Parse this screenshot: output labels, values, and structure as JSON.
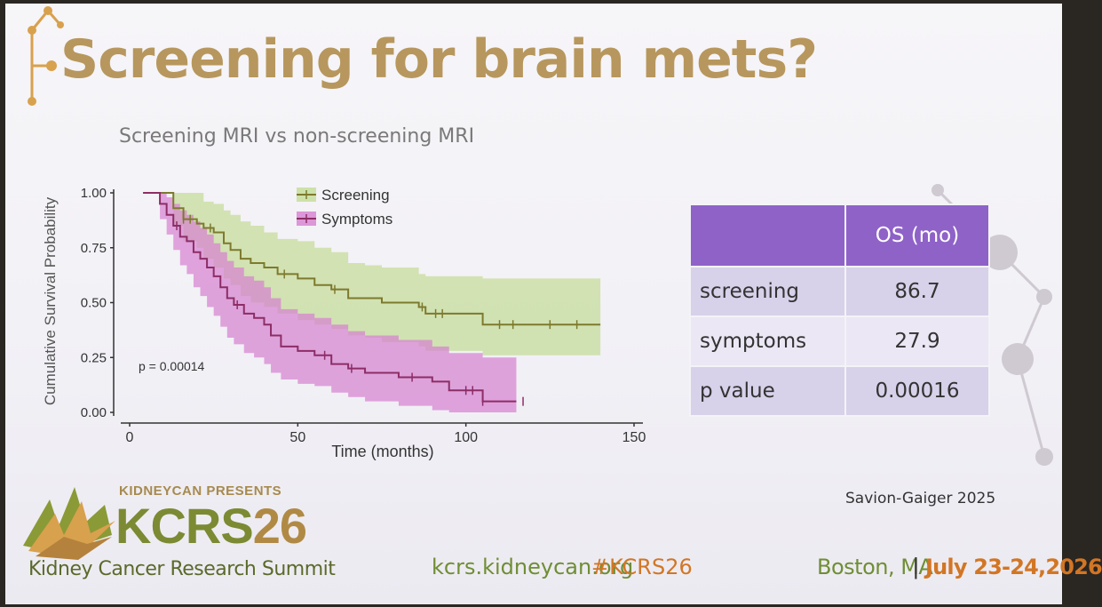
{
  "slide": {
    "title": "Screening for brain mets?",
    "subtitle": "Screening MRI vs non-screening MRI",
    "citation": "Savion-Gaiger 2025"
  },
  "chart_data": {
    "type": "line",
    "subtype": "kaplan-meier",
    "title": "",
    "xlabel": "Time (months)",
    "ylabel": "Cumulative Survival Probability",
    "xlim": [
      0,
      150
    ],
    "ylim": [
      0,
      1
    ],
    "x_ticks": [
      "0",
      "50",
      "100",
      "150"
    ],
    "y_ticks": [
      "0.00",
      "0.25",
      "0.50",
      "0.75",
      "1.00"
    ],
    "legend_position": "top-center",
    "annotation": "p = 0.00014",
    "series": [
      {
        "name": "Screening",
        "color": "#7d7a2d",
        "band_color": "#c3dc96",
        "x": [
          4,
          10,
          13,
          16,
          20,
          22,
          25,
          28,
          30,
          33,
          36,
          40,
          44,
          50,
          55,
          60,
          63,
          65,
          70,
          75,
          80,
          86,
          88,
          100,
          105,
          110,
          130,
          140
        ],
        "y": [
          1.0,
          1.0,
          0.93,
          0.88,
          0.86,
          0.84,
          0.82,
          0.77,
          0.74,
          0.7,
          0.68,
          0.66,
          0.63,
          0.61,
          0.58,
          0.56,
          0.56,
          0.52,
          0.52,
          0.5,
          0.5,
          0.48,
          0.45,
          0.45,
          0.4,
          0.4,
          0.4,
          0.4
        ],
        "ci_upper": [
          1.0,
          1.0,
          1.0,
          1.0,
          1.0,
          0.96,
          0.95,
          0.92,
          0.9,
          0.87,
          0.85,
          0.82,
          0.79,
          0.78,
          0.75,
          0.73,
          0.73,
          0.68,
          0.67,
          0.66,
          0.66,
          0.63,
          0.62,
          0.62,
          0.61,
          0.61,
          0.61,
          0.61
        ],
        "ci_lower": [
          1.0,
          1.0,
          0.85,
          0.78,
          0.75,
          0.7,
          0.66,
          0.61,
          0.58,
          0.53,
          0.5,
          0.48,
          0.45,
          0.42,
          0.4,
          0.38,
          0.38,
          0.35,
          0.34,
          0.32,
          0.32,
          0.3,
          0.28,
          0.28,
          0.26,
          0.26,
          0.26,
          0.26
        ],
        "censor_x": [
          16,
          18,
          24,
          46,
          61,
          87,
          91,
          93,
          110,
          114,
          125,
          133
        ]
      },
      {
        "name": "Symptoms",
        "color": "#8d2d66",
        "band_color": "#d680d0",
        "x": [
          4,
          7,
          9,
          11,
          13,
          15,
          17,
          19,
          21,
          23,
          25,
          27,
          29,
          31,
          34,
          37,
          40,
          42,
          45,
          50,
          55,
          60,
          65,
          70,
          80,
          90,
          95,
          105,
          115
        ],
        "y": [
          1.0,
          1.0,
          0.95,
          0.9,
          0.85,
          0.8,
          0.78,
          0.73,
          0.7,
          0.66,
          0.62,
          0.57,
          0.52,
          0.49,
          0.45,
          0.43,
          0.4,
          0.35,
          0.3,
          0.28,
          0.26,
          0.22,
          0.2,
          0.18,
          0.16,
          0.14,
          0.1,
          0.05,
          0.05
        ],
        "ci_upper": [
          1.0,
          1.0,
          1.0,
          0.98,
          0.95,
          0.92,
          0.9,
          0.87,
          0.84,
          0.81,
          0.77,
          0.73,
          0.69,
          0.66,
          0.62,
          0.6,
          0.57,
          0.52,
          0.47,
          0.45,
          0.43,
          0.4,
          0.37,
          0.35,
          0.33,
          0.3,
          0.27,
          0.25,
          0.25
        ],
        "ci_lower": [
          1.0,
          1.0,
          0.88,
          0.81,
          0.74,
          0.67,
          0.63,
          0.57,
          0.53,
          0.48,
          0.44,
          0.39,
          0.34,
          0.31,
          0.27,
          0.25,
          0.22,
          0.18,
          0.15,
          0.13,
          0.12,
          0.09,
          0.07,
          0.05,
          0.03,
          0.01,
          0.0,
          0.0,
          0.0
        ],
        "censor_x": [
          14,
          32,
          58,
          66,
          84,
          100,
          102,
          105,
          117
        ]
      }
    ]
  },
  "table": {
    "header": [
      "",
      "OS (mo)"
    ],
    "rows": [
      [
        "screening",
        "86.7"
      ],
      [
        "symptoms",
        "27.9"
      ],
      [
        "p value",
        "0.00016"
      ]
    ]
  },
  "branding": {
    "presenter": "KIDNEYCAN PRESENTS",
    "event_code_a": "KCRS",
    "event_code_b": "26",
    "summit_name": "Kidney Cancer Research Summit",
    "url": "kcrs.kidneycan.org",
    "hashtag": "#KCRS26",
    "location": "Boston, MA",
    "separator": "|",
    "dates": "July 23-24,2026"
  },
  "colors": {
    "title": "#b7975d",
    "table_header": "#8f62c8",
    "footer_green": "#6f8e34",
    "footer_orange": "#d27624"
  }
}
